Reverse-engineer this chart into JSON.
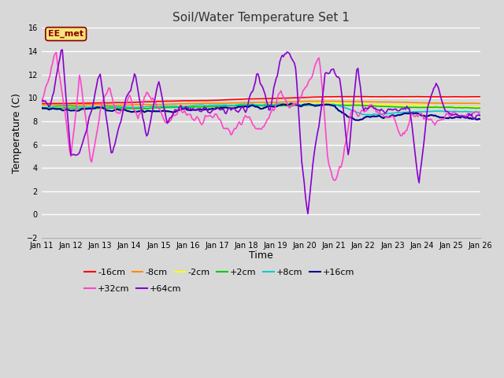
{
  "title": "Soil/Water Temperature Set 1",
  "xlabel": "Time",
  "ylabel": "Temperature (C)",
  "ylim": [
    -2,
    16
  ],
  "yticks": [
    -2,
    0,
    2,
    4,
    6,
    8,
    10,
    12,
    14,
    16
  ],
  "x_labels": [
    "Jan 11",
    "Jan 12",
    "Jan 13",
    "Jan 14",
    "Jan 15",
    "Jan 16",
    "Jan 17",
    "Jan 18",
    "Jan 19",
    "Jan 20",
    "Jan 21",
    "Jan 22",
    "Jan 23",
    "Jan 24",
    "Jan 25",
    "Jan 26"
  ],
  "annotation_text": "EE_met",
  "annotation_bg": "#f5e67a",
  "annotation_border": "#8b0000",
  "bg_color": "#d8d8d8",
  "plot_bg": "#d8d8d8",
  "grid_color": "#ffffff",
  "series_order": [
    "-16cm",
    "-8cm",
    "-2cm",
    "+2cm",
    "+8cm",
    "+16cm",
    "+32cm",
    "+64cm"
  ],
  "series": {
    "-16cm": {
      "color": "#ff0000",
      "lw": 1.2
    },
    "-8cm": {
      "color": "#ff8c00",
      "lw": 1.2
    },
    "-2cm": {
      "color": "#ffff00",
      "lw": 1.2
    },
    "+2cm": {
      "color": "#00cc00",
      "lw": 1.2
    },
    "+8cm": {
      "color": "#00cccc",
      "lw": 1.2
    },
    "+16cm": {
      "color": "#00008b",
      "lw": 1.5
    },
    "+32cm": {
      "color": "#ff44cc",
      "lw": 1.2
    },
    "+64cm": {
      "color": "#8800cc",
      "lw": 1.2
    }
  },
  "n_points": 360,
  "legend_row1": [
    "-16cm",
    "-8cm",
    "-2cm",
    "+2cm",
    "+8cm",
    "+16cm"
  ],
  "legend_row2": [
    "+32cm",
    "+64cm"
  ]
}
